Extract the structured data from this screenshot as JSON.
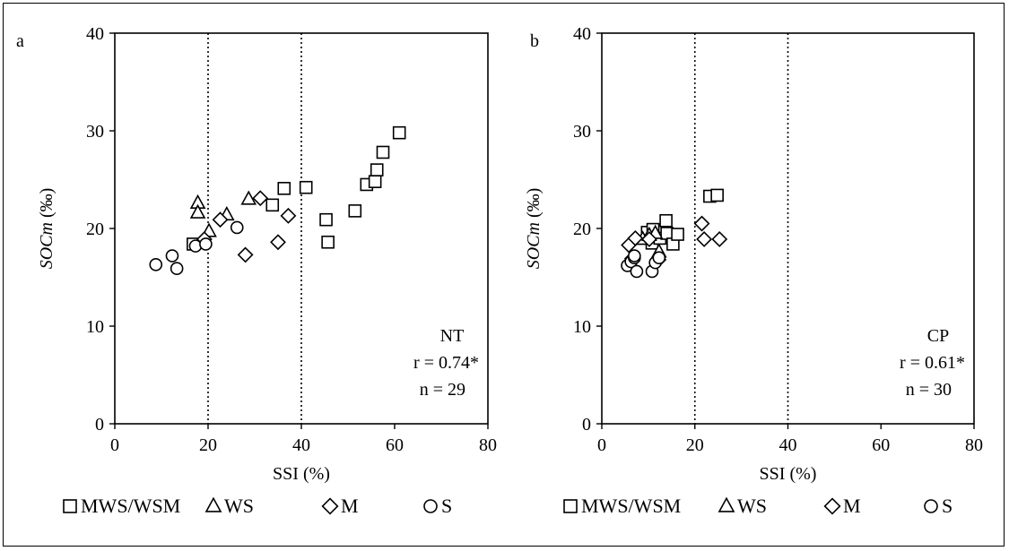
{
  "chart_data": [
    {
      "type": "scatter",
      "panel_letter": "a",
      "xlabel": "SSI (%)",
      "ylabel_italic": "SOCm",
      "ylabel_rest": " (‰)",
      "xlim": [
        0,
        80
      ],
      "ylim": [
        0,
        40
      ],
      "xticks": [
        "0",
        "20",
        "40",
        "60",
        "80"
      ],
      "yticks": [
        "0",
        "10",
        "20",
        "30",
        "40"
      ],
      "reference_lines_x": [
        20,
        40
      ],
      "annotation": [
        "NT",
        "r = 0.74*",
        "n = 29"
      ],
      "series": [
        {
          "name": "MWS/WSM",
          "marker": "square",
          "points": [
            [
              16.8,
              18.4
            ],
            [
              33.8,
              22.4
            ],
            [
              36.3,
              24.1
            ],
            [
              41.0,
              24.2
            ],
            [
              45.3,
              20.9
            ],
            [
              45.7,
              18.6
            ],
            [
              51.5,
              21.8
            ],
            [
              54.0,
              24.5
            ],
            [
              55.8,
              24.8
            ],
            [
              56.2,
              26.0
            ],
            [
              57.5,
              27.8
            ],
            [
              61.0,
              29.8
            ]
          ]
        },
        {
          "name": "WS",
          "marker": "triangle",
          "points": [
            [
              17.8,
              22.6
            ],
            [
              17.8,
              21.6
            ],
            [
              20.2,
              19.7
            ],
            [
              24.0,
              21.4
            ],
            [
              28.7,
              23.0
            ]
          ]
        },
        {
          "name": "M",
          "marker": "diamond",
          "points": [
            [
              19.2,
              18.9
            ],
            [
              22.6,
              20.9
            ],
            [
              28.0,
              17.3
            ],
            [
              31.2,
              23.1
            ],
            [
              35.0,
              18.6
            ],
            [
              37.2,
              21.3
            ]
          ]
        },
        {
          "name": "S",
          "marker": "circle",
          "points": [
            [
              8.8,
              16.3
            ],
            [
              12.3,
              17.2
            ],
            [
              13.3,
              15.9
            ],
            [
              17.3,
              18.2
            ],
            [
              19.5,
              18.4
            ],
            [
              26.2,
              20.1
            ]
          ]
        }
      ]
    },
    {
      "type": "scatter",
      "panel_letter": "b",
      "xlabel": "SSI (%)",
      "ylabel_italic": "SOCm",
      "ylabel_rest": " (‰)",
      "xlim": [
        0,
        80
      ],
      "ylim": [
        0,
        40
      ],
      "xticks": [
        "0",
        "20",
        "40",
        "60",
        "80"
      ],
      "yticks": [
        "0",
        "10",
        "20",
        "30",
        "40"
      ],
      "reference_lines_x": [
        20,
        40
      ],
      "annotation": [
        "CP",
        "r = 0.61*",
        "n = 30"
      ],
      "series": [
        {
          "name": "MWS/WSM",
          "marker": "square",
          "points": [
            [
              9.8,
              19.6
            ],
            [
              10.8,
              18.5
            ],
            [
              12.5,
              19.0
            ],
            [
              13.8,
              20.8
            ],
            [
              14.0,
              19.5
            ],
            [
              15.3,
              18.4
            ],
            [
              16.3,
              19.4
            ],
            [
              23.2,
              23.3
            ],
            [
              24.8,
              23.4
            ],
            [
              11.0,
              19.9
            ]
          ]
        },
        {
          "name": "WS",
          "marker": "triangle",
          "points": [
            [
              8.8,
              18.9
            ],
            [
              10.2,
              19.3
            ],
            [
              12.3,
              17.6
            ],
            [
              11.5,
              19.5
            ]
          ]
        },
        {
          "name": "M",
          "marker": "diamond",
          "points": [
            [
              5.8,
              18.3
            ],
            [
              7.2,
              19.0
            ],
            [
              10.2,
              18.9
            ],
            [
              12.2,
              16.8
            ],
            [
              21.5,
              20.5
            ],
            [
              22.0,
              18.9
            ],
            [
              25.3,
              18.9
            ],
            [
              6.5,
              16.9
            ]
          ]
        },
        {
          "name": "S",
          "marker": "circle",
          "points": [
            [
              5.5,
              16.2
            ],
            [
              6.3,
              16.6
            ],
            [
              7.0,
              17.0
            ],
            [
              7.5,
              15.6
            ],
            [
              10.8,
              15.6
            ],
            [
              11.5,
              16.5
            ],
            [
              7.0,
              17.2
            ],
            [
              12.3,
              17.0
            ]
          ]
        }
      ]
    }
  ],
  "legend": [
    {
      "label": "MWS/WSM",
      "marker": "square"
    },
    {
      "label": "WS",
      "marker": "triangle"
    },
    {
      "label": "M",
      "marker": "diamond"
    },
    {
      "label": "S",
      "marker": "circle"
    }
  ]
}
